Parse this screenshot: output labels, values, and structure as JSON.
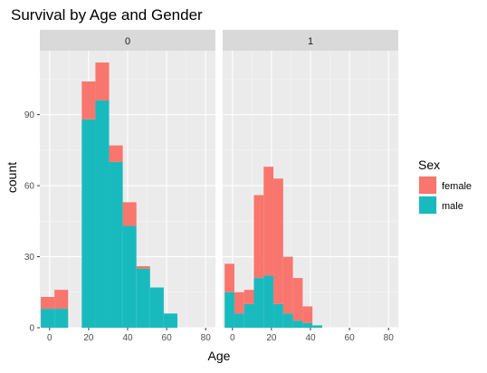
{
  "chart_data": {
    "type": "bar",
    "subtype": "faceted stacked histogram",
    "title": "Survival by Age and Gender",
    "xlabel": "Age",
    "ylabel": "count",
    "legend": {
      "title": "Sex",
      "position": "right",
      "entries": [
        {
          "name": "female",
          "color": "#F8766D"
        },
        {
          "name": "male",
          "color": "#19BABE"
        }
      ]
    },
    "xlim": [
      -5,
      85
    ],
    "ylim": [
      0,
      117
    ],
    "x_ticks": [
      0,
      20,
      40,
      60,
      80
    ],
    "y_ticks": [
      0,
      30,
      60,
      90
    ],
    "grid": true,
    "facets": [
      {
        "label": "0",
        "bins": [
          {
            "x0": -4.5,
            "x1": 2.5,
            "male": 8,
            "female": 5
          },
          {
            "x0": 2.5,
            "x1": 9.5,
            "male": 8,
            "female": 8
          },
          {
            "x0": 16.5,
            "x1": 23.5,
            "male": 88,
            "female": 16
          },
          {
            "x0": 23.5,
            "x1": 30.5,
            "male": 96,
            "female": 16
          },
          {
            "x0": 30.5,
            "x1": 37.5,
            "male": 70,
            "female": 7
          },
          {
            "x0": 37.5,
            "x1": 44.5,
            "male": 43,
            "female": 10
          },
          {
            "x0": 44.5,
            "x1": 51.5,
            "male": 25,
            "female": 1
          },
          {
            "x0": 51.5,
            "x1": 58.5,
            "male": 17,
            "female": 0
          },
          {
            "x0": 58.5,
            "x1": 65.5,
            "male": 6,
            "female": 0
          }
        ]
      },
      {
        "label": "1",
        "bins": [
          {
            "x0": -4,
            "x1": 1,
            "male": 15,
            "female": 12
          },
          {
            "x0": 1,
            "x1": 6,
            "male": 6,
            "female": 9
          },
          {
            "x0": 6,
            "x1": 11,
            "male": 10,
            "female": 6
          },
          {
            "x0": 11,
            "x1": 16,
            "male": 21,
            "female": 35
          },
          {
            "x0": 16,
            "x1": 21,
            "male": 22,
            "female": 46
          },
          {
            "x0": 21,
            "x1": 26,
            "male": 10,
            "female": 53
          },
          {
            "x0": 26,
            "x1": 31,
            "male": 6,
            "female": 24
          },
          {
            "x0": 31,
            "x1": 36,
            "male": 3,
            "female": 18
          },
          {
            "x0": 36,
            "x1": 41,
            "male": 2,
            "female": 7
          },
          {
            "x0": 41,
            "x1": 46,
            "male": 1,
            "female": 0
          }
        ]
      }
    ]
  }
}
